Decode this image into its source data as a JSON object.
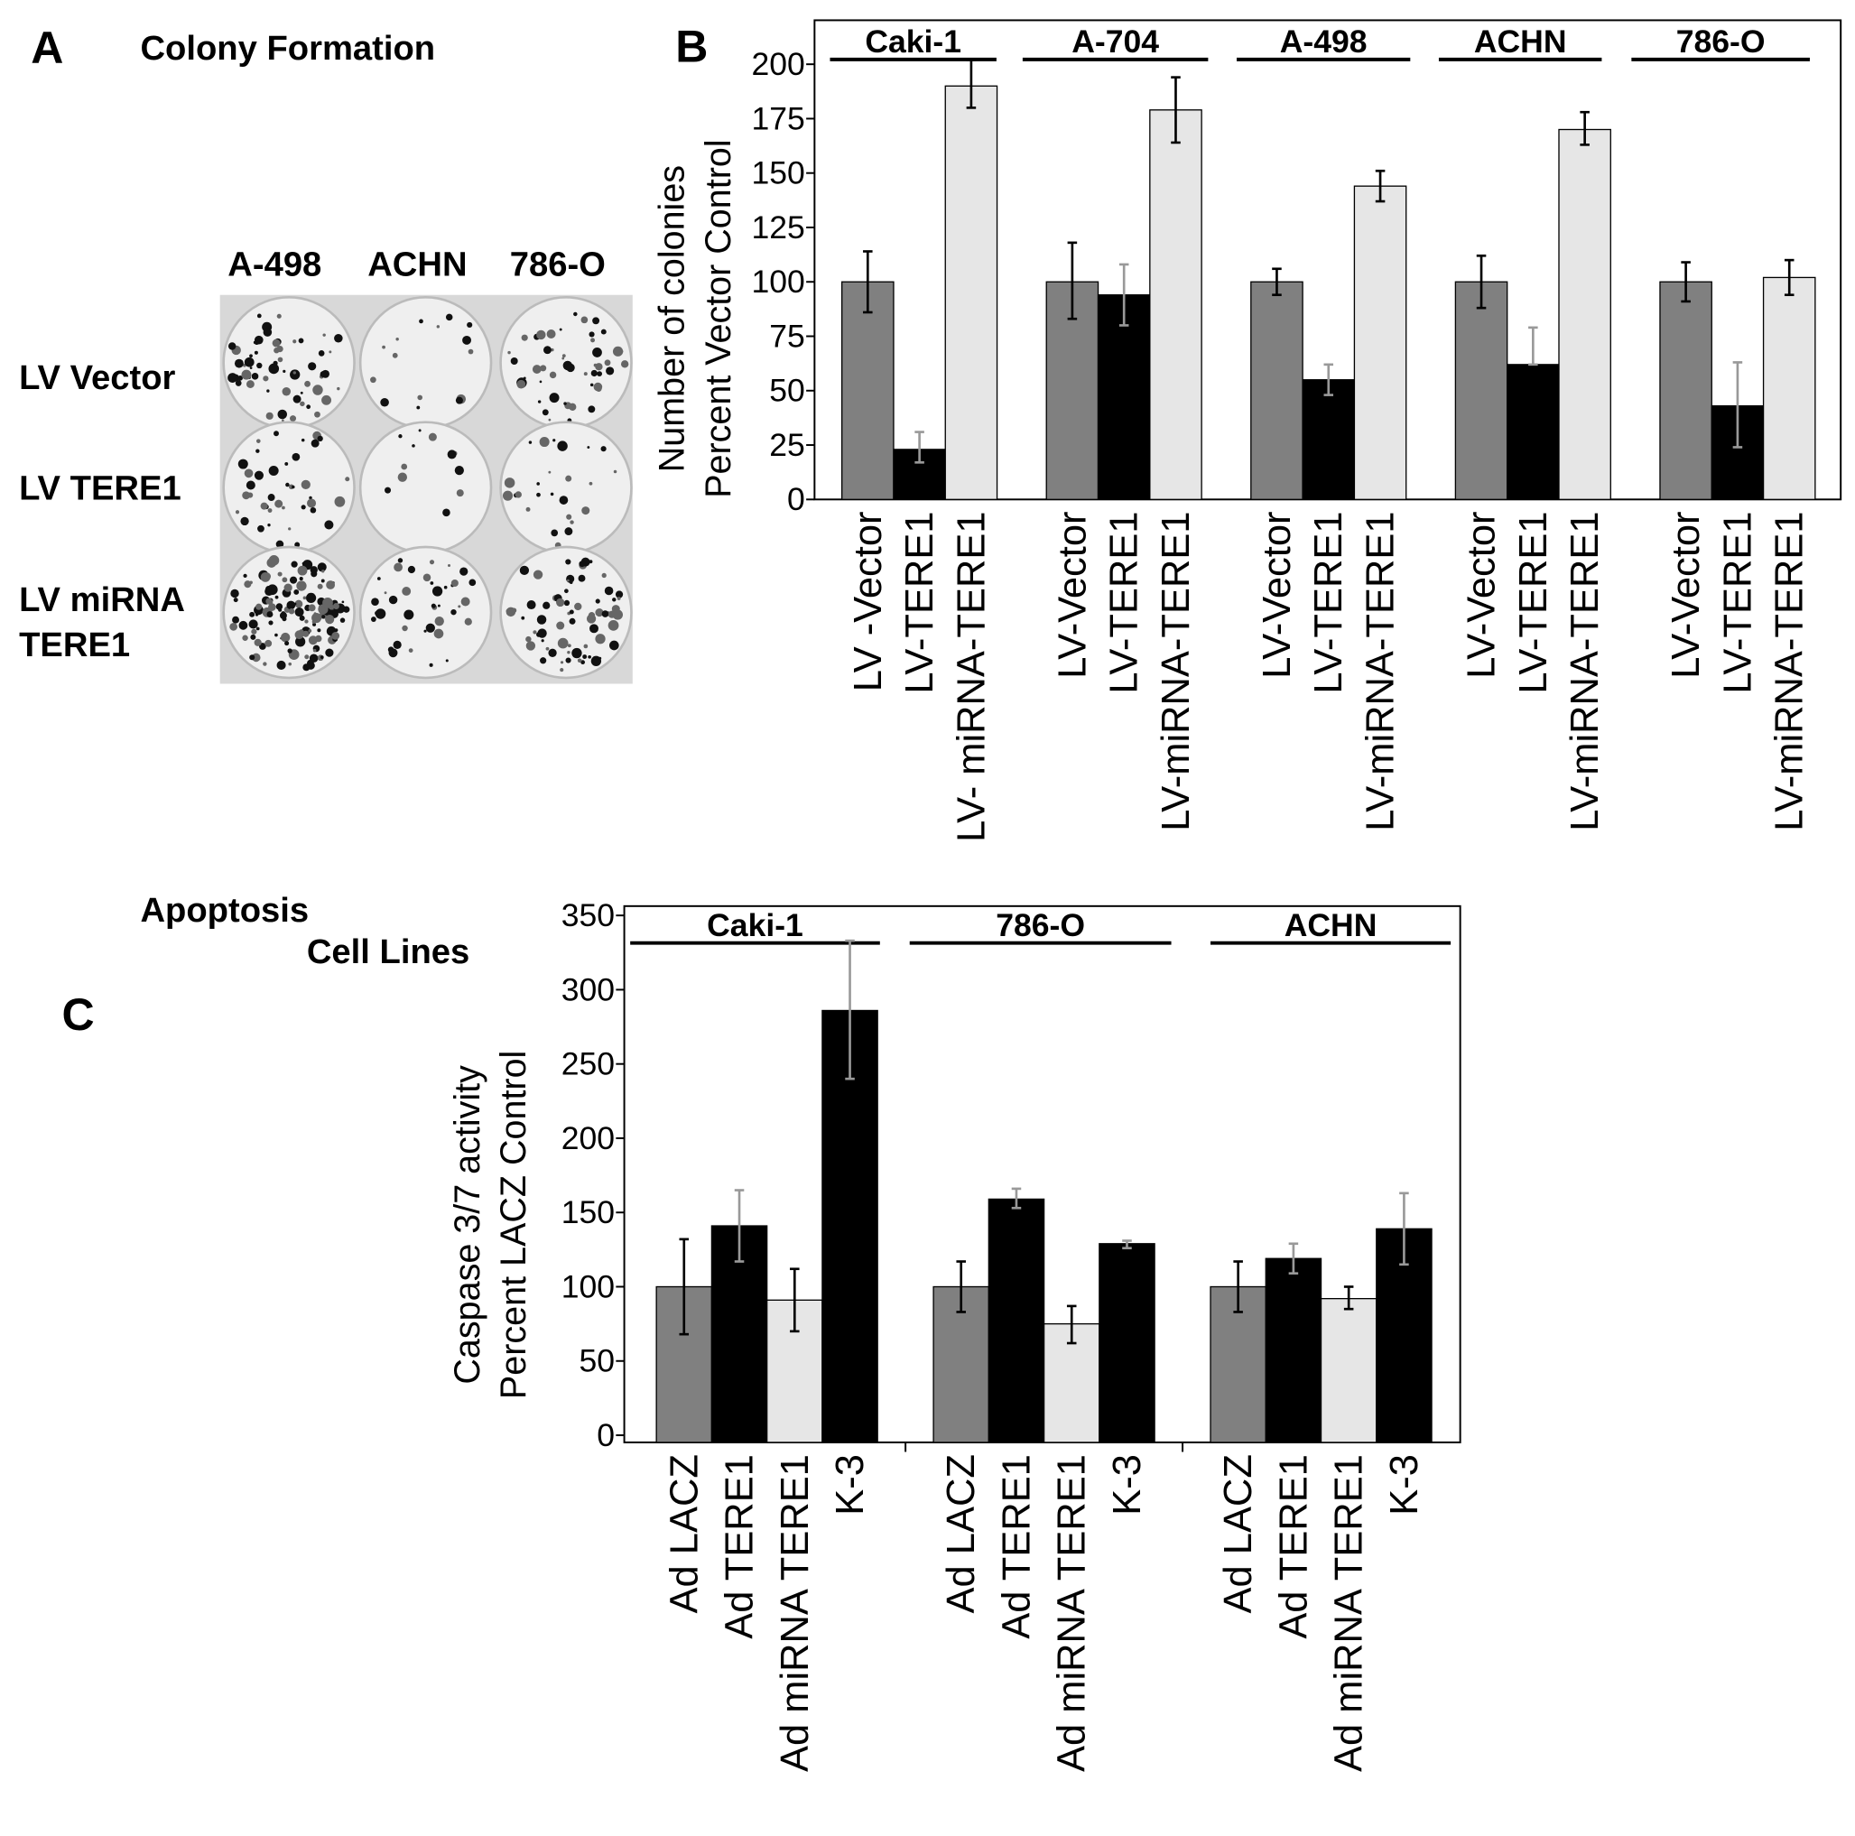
{
  "panel_a": {
    "letter": "A",
    "title": "Colony Formation",
    "columns": [
      "A-498",
      "ACHN",
      "786-O"
    ],
    "rows": [
      [
        "LV Vector"
      ],
      [
        "LV TERE1"
      ],
      [
        "LV miRNA",
        "TERE1"
      ]
    ]
  },
  "panel_c": {
    "letter": "C",
    "title_line1": "Apoptosis",
    "title_line2": "Cell Lines"
  },
  "colors": {
    "gray": "#808080",
    "black": "#000000",
    "light": "#e6e6e6"
  },
  "chart_data": [
    {
      "panel": "B",
      "type": "bar",
      "ylabel": [
        "Number of colonies",
        "Percent Vector Control"
      ],
      "ylim": [
        0,
        200
      ],
      "yticks": [
        0,
        25,
        50,
        75,
        100,
        125,
        150,
        175,
        200
      ],
      "groups": [
        "Caki-1",
        "A-704",
        "A-498",
        "ACHN",
        "786-O"
      ],
      "category_labels": [
        [
          "LV -Vector",
          "LV-TERE1",
          "LV- miRNA-TERE1"
        ],
        [
          "LV-Vector",
          "LV-TERE1",
          "LV-miRNA-TERE1"
        ],
        [
          "LV-Vector",
          "LV-TERE1",
          "LV-miRNA-TERE1"
        ],
        [
          "LV-Vector",
          "LV-TERE1",
          "LV-miRNA-TERE1"
        ],
        [
          "LV-Vector",
          "LV-TERE1",
          "LV-miRNA-TERE1"
        ]
      ],
      "bar_colors": [
        "#808080",
        "#000000",
        "#e6e6e6"
      ],
      "values": [
        [
          100,
          23,
          190
        ],
        [
          100,
          94,
          179
        ],
        [
          100,
          55,
          144
        ],
        [
          100,
          62,
          170
        ],
        [
          100,
          43,
          102
        ]
      ],
      "error_low": [
        [
          86,
          17,
          180
        ],
        [
          83,
          80,
          164
        ],
        [
          94,
          48,
          137
        ],
        [
          88,
          62,
          163
        ],
        [
          91,
          24,
          94
        ]
      ],
      "error_high": [
        [
          114,
          31,
          202
        ],
        [
          118,
          108,
          194
        ],
        [
          106,
          62,
          151
        ],
        [
          112,
          79,
          178
        ],
        [
          109,
          63,
          110
        ]
      ],
      "grid": false
    },
    {
      "panel": "C",
      "type": "bar",
      "ylabel": [
        "Caspase 3/7 activity",
        "Percent LACZ Control"
      ],
      "ylim": [
        0,
        350
      ],
      "yticks": [
        0,
        50,
        100,
        150,
        200,
        250,
        300,
        350
      ],
      "groups": [
        "Caki-1",
        "786-O",
        "ACHN"
      ],
      "category_labels": [
        [
          "Ad LACZ",
          "Ad TERE1",
          "Ad miRNA TERE1",
          "K-3"
        ],
        [
          "Ad LACZ",
          "Ad TERE1",
          "Ad miRNA TERE1",
          "K-3"
        ],
        [
          "Ad LACZ",
          "Ad TERE1",
          "Ad miRNA TERE1",
          "K-3"
        ]
      ],
      "bar_colors": [
        "#808080",
        "#000000",
        "#e6e6e6",
        "#000000"
      ],
      "values": [
        [
          100,
          141,
          91,
          286
        ],
        [
          100,
          159,
          75,
          129
        ],
        [
          100,
          119,
          92,
          139
        ]
      ],
      "error_low": [
        [
          68,
          117,
          70,
          240
        ],
        [
          83,
          153,
          62,
          126
        ],
        [
          83,
          109,
          85,
          115
        ]
      ],
      "error_high": [
        [
          132,
          165,
          112,
          333
        ],
        [
          117,
          166,
          87,
          131
        ],
        [
          117,
          129,
          100,
          163
        ]
      ],
      "grid": false
    }
  ]
}
